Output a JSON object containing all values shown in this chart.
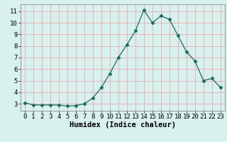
{
  "x": [
    0,
    1,
    2,
    3,
    4,
    5,
    6,
    7,
    8,
    9,
    10,
    11,
    12,
    13,
    14,
    15,
    16,
    17,
    18,
    19,
    20,
    21,
    22,
    23
  ],
  "y": [
    3.1,
    2.9,
    2.9,
    2.9,
    2.9,
    2.8,
    2.85,
    3.0,
    3.5,
    4.4,
    5.6,
    7.0,
    8.1,
    9.3,
    11.1,
    10.0,
    10.6,
    10.3,
    8.9,
    7.5,
    6.7,
    5.0,
    5.2,
    4.4
  ],
  "xlabel": "Humidex (Indice chaleur)",
  "xlim": [
    -0.5,
    23.5
  ],
  "ylim": [
    2.4,
    11.6
  ],
  "yticks": [
    3,
    4,
    5,
    6,
    7,
    8,
    9,
    10,
    11
  ],
  "xticks": [
    0,
    1,
    2,
    3,
    4,
    5,
    6,
    7,
    8,
    9,
    10,
    11,
    12,
    13,
    14,
    15,
    16,
    17,
    18,
    19,
    20,
    21,
    22,
    23
  ],
  "line_color": "#1a6b5a",
  "marker": "D",
  "marker_size": 2.5,
  "bg_color": "#d8f0ee",
  "grid_color": "#e8a0a0",
  "axis_fontsize": 7.5,
  "tick_fontsize": 6.5
}
